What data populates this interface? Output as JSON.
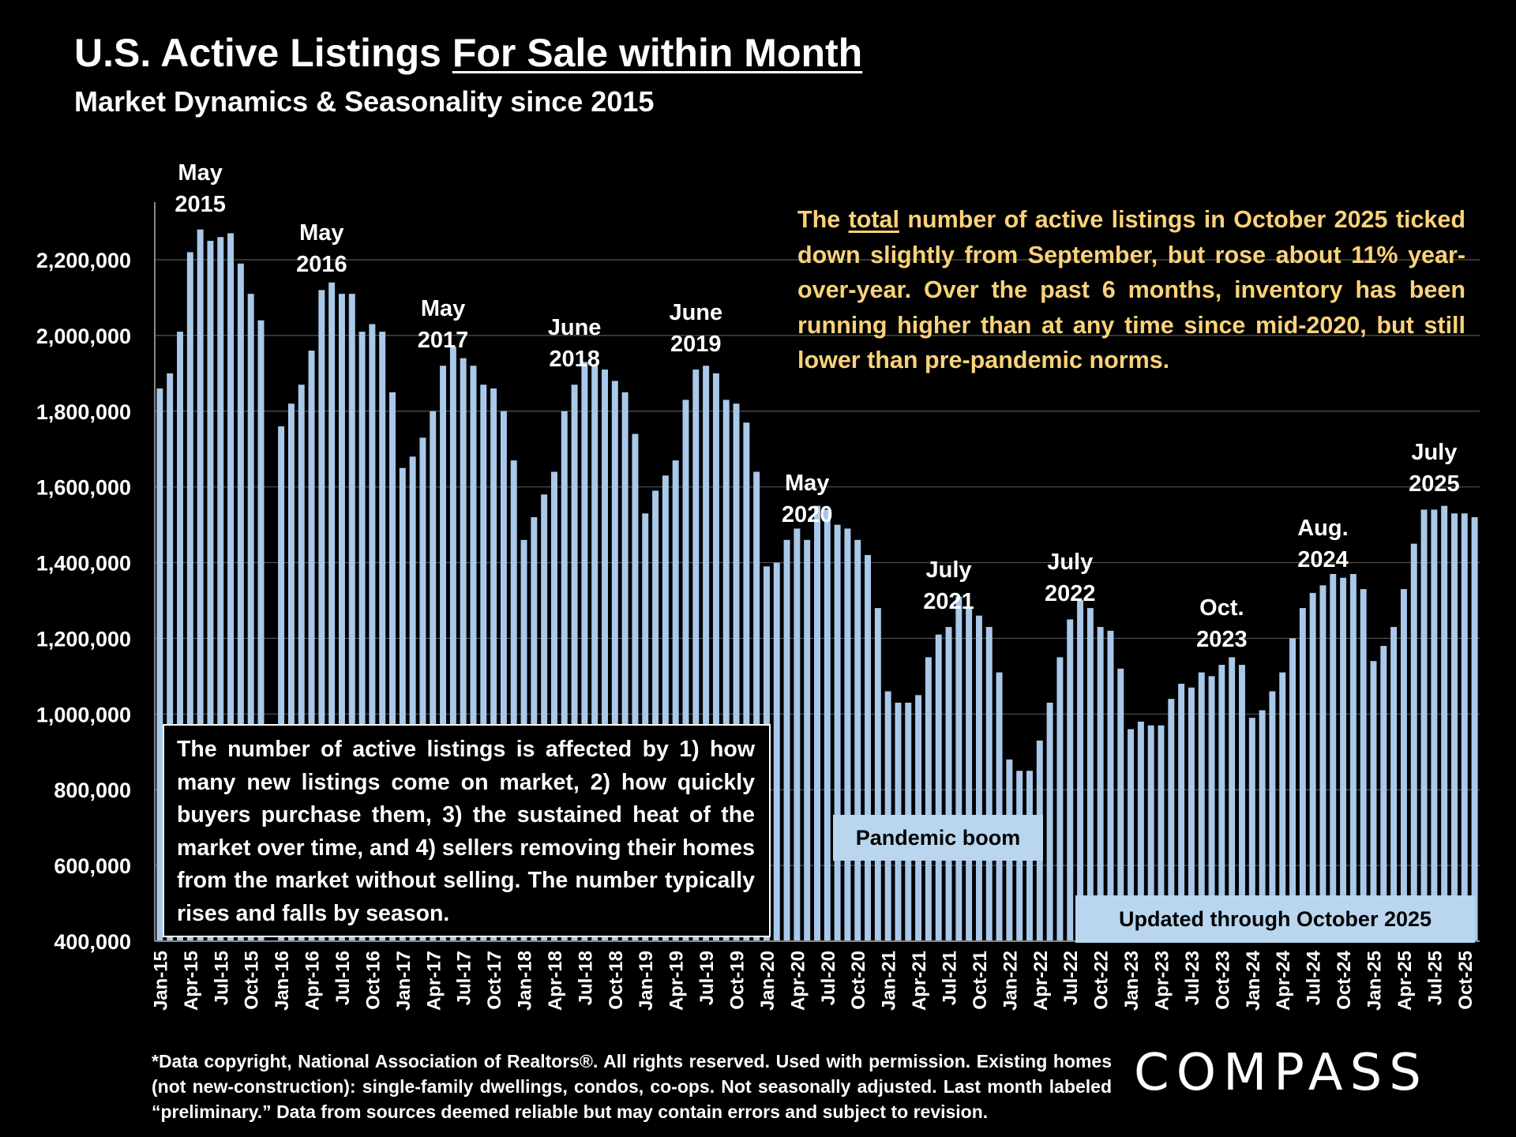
{
  "header": {
    "title_main": "U.S. Active Listings ",
    "title_underlined": "For Sale within Month",
    "subtitle": "Market Dynamics & Seasonality since 2015"
  },
  "callout": {
    "pre": "The ",
    "underlined": "total",
    "post": " number of active listings in October 2025 ticked down slightly from September, but rose about 11% year-over-year. Over the past 6 months, inventory has been running higher than at any time since mid-2020, but still lower than pre-pandemic norms."
  },
  "note": "The number of active listings is affected by 1) how many new listings come on market, 2) how quickly buyers purchase them, 3) the sustained heat of the market over time, and 4) sellers removing their homes from the market without selling. The number typically rises and falls by season.",
  "labels": {
    "pandemic": "Pandemic boom",
    "updated": "Updated through October 2025"
  },
  "footnote": "*Data copyright, National Association of Realtors®. All rights reserved. Used with permission. Existing homes (not new-construction): single-family dwellings, condos, co-ops. Not seasonally adjusted. Last month labeled “preliminary.” Data from sources deemed reliable but may contain errors and subject to revision.",
  "logo": "COMPASS",
  "chart_data": {
    "type": "bar",
    "color": "#a9c9ea",
    "ylim": [
      400000,
      2350000
    ],
    "yticks": [
      400000,
      600000,
      800000,
      1000000,
      1200000,
      1400000,
      1600000,
      1800000,
      2000000,
      2200000
    ],
    "ytick_labels": [
      "400,000",
      "600,000",
      "800,000",
      "1,000,000",
      "1,200,000",
      "1,400,000",
      "1,600,000",
      "1,800,000",
      "2,000,000",
      "2,200,000"
    ],
    "grid": true,
    "xtick_labels": [
      "Jan-15",
      "Apr-15",
      "Jul-15",
      "Oct-15",
      "Jan-16",
      "Apr-16",
      "Jul-16",
      "Oct-16",
      "Jan-17",
      "Apr-17",
      "Jul-17",
      "Oct-17",
      "Jan-18",
      "Apr-18",
      "Jul-18",
      "Oct-18",
      "Jan-19",
      "Apr-19",
      "Jul-19",
      "Oct-19",
      "Jan-20",
      "Apr-20",
      "Jul-20",
      "Oct-20",
      "Jan-21",
      "Apr-21",
      "Jul-21",
      "Oct-21",
      "Jan-22",
      "Apr-22",
      "Jul-22",
      "Oct-22",
      "Jan-23",
      "Apr-23",
      "Jul-23",
      "Oct-23",
      "Jan-24",
      "Apr-24",
      "Jul-24",
      "Oct-24",
      "Jan-25",
      "Apr-25",
      "Jul-25",
      "Oct-25"
    ],
    "start": "2015-01",
    "values": [
      1860000,
      1900000,
      2010000,
      2220000,
      2280000,
      2250000,
      2260000,
      2270000,
      2190000,
      2110000,
      2040000,
      null,
      1760000,
      1820000,
      1870000,
      1960000,
      2120000,
      2140000,
      2110000,
      2110000,
      2010000,
      2030000,
      2010000,
      1850000,
      1650000,
      1680000,
      1730000,
      1800000,
      1920000,
      1970000,
      1940000,
      1920000,
      1870000,
      1860000,
      1800000,
      1670000,
      1460000,
      1520000,
      1580000,
      1640000,
      1800000,
      1870000,
      1930000,
      1920000,
      1910000,
      1880000,
      1850000,
      1740000,
      1530000,
      1590000,
      1630000,
      1670000,
      1830000,
      1910000,
      1920000,
      1900000,
      1830000,
      1820000,
      1770000,
      1640000,
      1390000,
      1400000,
      1460000,
      1490000,
      1460000,
      1550000,
      1540000,
      1500000,
      1490000,
      1460000,
      1420000,
      1280000,
      1060000,
      1030000,
      1030000,
      1050000,
      1150000,
      1210000,
      1230000,
      1310000,
      1280000,
      1260000,
      1230000,
      1110000,
      880000,
      850000,
      850000,
      930000,
      1030000,
      1150000,
      1250000,
      1300000,
      1280000,
      1230000,
      1220000,
      1120000,
      960000,
      980000,
      970000,
      970000,
      1040000,
      1080000,
      1070000,
      1110000,
      1100000,
      1130000,
      1150000,
      1130000,
      990000,
      1010000,
      1060000,
      1110000,
      1200000,
      1280000,
      1320000,
      1340000,
      1370000,
      1360000,
      1370000,
      1330000,
      1140000,
      1180000,
      1230000,
      1330000,
      1450000,
      1540000,
      1540000,
      1550000,
      1530000,
      1530000,
      1520000
    ],
    "annotations": [
      {
        "lines": [
          "May",
          "2015"
        ],
        "month_index": 4
      },
      {
        "lines": [
          "May",
          "2016"
        ],
        "month_index": 16
      },
      {
        "lines": [
          "May",
          "2017"
        ],
        "month_index": 28
      },
      {
        "lines": [
          "June",
          "2018"
        ],
        "month_index": 41
      },
      {
        "lines": [
          "June",
          "2019"
        ],
        "month_index": 53
      },
      {
        "lines": [
          "May",
          "2020"
        ],
        "month_index": 64
      },
      {
        "lines": [
          "July",
          "2021"
        ],
        "month_index": 78
      },
      {
        "lines": [
          "July",
          "2022"
        ],
        "month_index": 90
      },
      {
        "lines": [
          "Oct.",
          "2023"
        ],
        "month_index": 105
      },
      {
        "lines": [
          "Aug.",
          "2024"
        ],
        "month_index": 115
      },
      {
        "lines": [
          "July",
          "2025"
        ],
        "month_index": 126
      }
    ]
  }
}
